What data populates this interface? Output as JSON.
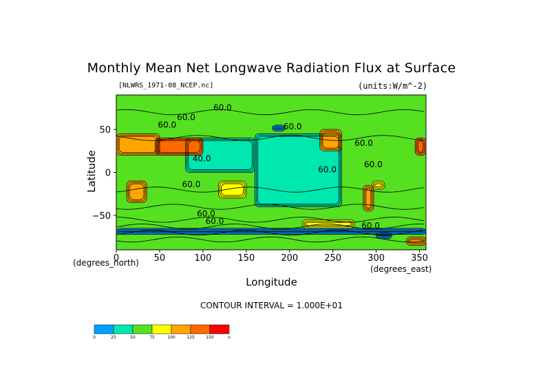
{
  "chart_data": {
    "type": "heatmap",
    "title": "Monthly Mean Net Longwave Radiation Flux at Surface",
    "subtitle_left": "[NLWRS_1971-08_NCEP.nc]",
    "subtitle_right": "(units:W/m^-2)",
    "xlabel": "Longitude",
    "ylabel": "Latitude",
    "x_unit_left": "(degrees_north)",
    "x_unit_right": "(degrees_east)",
    "xlim": [
      0,
      357.5
    ],
    "ylim": [
      -90,
      90
    ],
    "xticks": [
      0,
      50,
      100,
      150,
      200,
      250,
      300,
      350
    ],
    "yticks": [
      50,
      0,
      -50
    ],
    "annotation": "CONTOUR INTERVAL = 1.000E+01",
    "colorbar": {
      "levels": [
        "0",
        "25",
        "50",
        "75",
        "100",
        "125",
        "150",
        "∞"
      ],
      "colors": [
        "#00a0ff",
        "#00e8b0",
        "#55e020",
        "#ffff00",
        "#ffa500",
        "#ff6a00",
        "#ff0000"
      ]
    },
    "contour_labels": [
      {
        "text": "60.0",
        "lon": 112,
        "lat": 72
      },
      {
        "text": "60.0",
        "lon": 70,
        "lat": 61
      },
      {
        "text": "60.0",
        "lon": 48,
        "lat": 52
      },
      {
        "text": "60.0",
        "lon": 193,
        "lat": 50
      },
      {
        "text": "60.0",
        "lon": 275,
        "lat": 31
      },
      {
        "text": "40.0",
        "lon": 88,
        "lat": 13
      },
      {
        "text": "60.0",
        "lon": 233,
        "lat": 0
      },
      {
        "text": "60.0",
        "lon": 286,
        "lat": 6
      },
      {
        "text": "60.0",
        "lon": 76,
        "lat": -17
      },
      {
        "text": "60.0",
        "lon": 93,
        "lat": -51
      },
      {
        "text": "60.0",
        "lon": 103,
        "lat": -60
      },
      {
        "text": "60.0",
        "lon": 283,
        "lat": -65
      }
    ],
    "regions": [
      {
        "value": 60,
        "lon": [
          0,
          357.5
        ],
        "lat": [
          -90,
          90
        ]
      },
      {
        "value": 40,
        "lon": [
          160,
          260
        ],
        "lat": [
          -40,
          45
        ]
      },
      {
        "value": 30,
        "lon": [
          80,
          160
        ],
        "lat": [
          0,
          40
        ]
      },
      {
        "value": 110,
        "lon": [
          0,
          50
        ],
        "lat": [
          20,
          45
        ]
      },
      {
        "value": 140,
        "lon": [
          45,
          100
        ],
        "lat": [
          20,
          40
        ]
      },
      {
        "value": 120,
        "lon": [
          235,
          260
        ],
        "lat": [
          25,
          50
        ]
      },
      {
        "value": 130,
        "lon": [
          345,
          357.5
        ],
        "lat": [
          20,
          40
        ]
      },
      {
        "value": 110,
        "lon": [
          12,
          35
        ],
        "lat": [
          -35,
          -10
        ]
      },
      {
        "value": 90,
        "lon": [
          118,
          150
        ],
        "lat": [
          -30,
          -10
        ]
      },
      {
        "value": 110,
        "lon": [
          285,
          297
        ],
        "lat": [
          -45,
          -15
        ]
      },
      {
        "value": 90,
        "lon": [
          295,
          310
        ],
        "lat": [
          -20,
          -10
        ]
      },
      {
        "value": 90,
        "lon": [
          215,
          275
        ],
        "lat": [
          -65,
          -55
        ]
      },
      {
        "value": 20,
        "lon": [
          180,
          195
        ],
        "lat": [
          48,
          55
        ]
      },
      {
        "value": 20,
        "lon": [
          300,
          318
        ],
        "lat": [
          -77,
          -70
        ]
      },
      {
        "value": 100,
        "lon": [
          335,
          357.5
        ],
        "lat": [
          -85,
          -75
        ]
      },
      {
        "value": 10,
        "lon": [
          0,
          357.5
        ],
        "lat": [
          -72,
          -65
        ]
      }
    ]
  }
}
